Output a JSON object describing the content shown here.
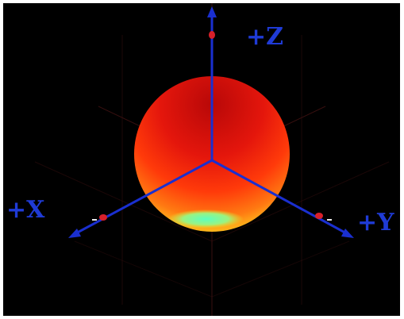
{
  "colors": {
    "background": "#000000",
    "axis": "#1a2fd0",
    "axis_label": "#1f3bd6",
    "grid": "#5a1818",
    "marker": "#d8202a",
    "sphere_top": "#c80c0c",
    "sphere_mid": "#ff3a0a",
    "sphere_low": "#ffb21a",
    "sphere_bottom": "#f2f21e",
    "sphere_spot": "#48ffb0"
  },
  "axes": {
    "z_label": "+Z",
    "x_label": "+X",
    "y_label": "+Y"
  },
  "icons": {
    "axis_arrowhead": "arrowhead",
    "axis_marker": "cone-marker"
  }
}
